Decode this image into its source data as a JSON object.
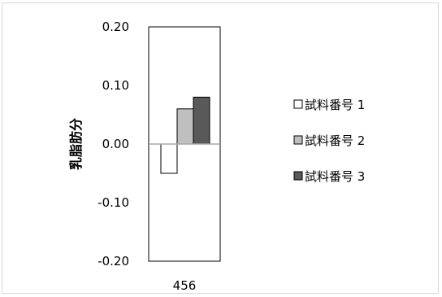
{
  "chart_data": {
    "type": "bar",
    "categories": [
      "456"
    ],
    "ylabel": "乳脂肪分",
    "ylim": [
      -0.2,
      0.2
    ],
    "yticks": [
      "0.20",
      "0.10",
      "0.00",
      "-0.10",
      "-0.20"
    ],
    "ytick_values": [
      0.2,
      0.1,
      0.0,
      -0.1,
      -0.2
    ],
    "grid": false,
    "legend_position": "right",
    "series": [
      {
        "name": "試料番号 1",
        "values": [
          -0.05
        ],
        "color": "#ffffff"
      },
      {
        "name": "試料番号 2",
        "values": [
          0.06
        ],
        "color": "#bfbfbf"
      },
      {
        "name": "試料番号 3",
        "values": [
          0.08
        ],
        "color": "#595959"
      }
    ]
  }
}
